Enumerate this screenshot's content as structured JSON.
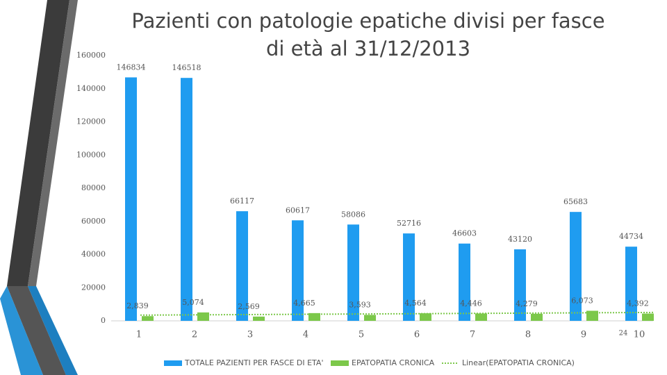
{
  "chart_data": {
    "type": "bar",
    "title": "Pazienti con patologie epatiche divisi per fasce di età al 31/12/2013",
    "categories": [
      "1",
      "2",
      "3",
      "4",
      "5",
      "6",
      "7",
      "8",
      "9",
      "10"
    ],
    "series": [
      {
        "name": "TOTALE PAZIENTI PER FASCE DI ETA'",
        "color": "#1f9cf0",
        "values": [
          146834,
          146518,
          66117,
          60617,
          58086,
          52716,
          46603,
          43120,
          65683,
          44734
        ]
      },
      {
        "name": "EPATOPATIA CRONICA",
        "color": "#7cc84a",
        "values": [
          2839,
          5074,
          2569,
          4665,
          3593,
          4564,
          4446,
          4279,
          6073,
          4392
        ],
        "value_labels": [
          "2,839",
          "5,074",
          "2,569",
          "4,665",
          "3,593",
          "4,564",
          "4,446",
          "4,279",
          "6,073",
          "4,392"
        ]
      }
    ],
    "trendline": {
      "name": "Linear(EPATOPATIA CRONICA)",
      "color": "#7cc84a"
    },
    "ylim": [
      0,
      160000
    ],
    "yticks": [
      0,
      20000,
      40000,
      60000,
      80000,
      100000,
      120000,
      140000,
      160000
    ]
  },
  "page_number": "24"
}
